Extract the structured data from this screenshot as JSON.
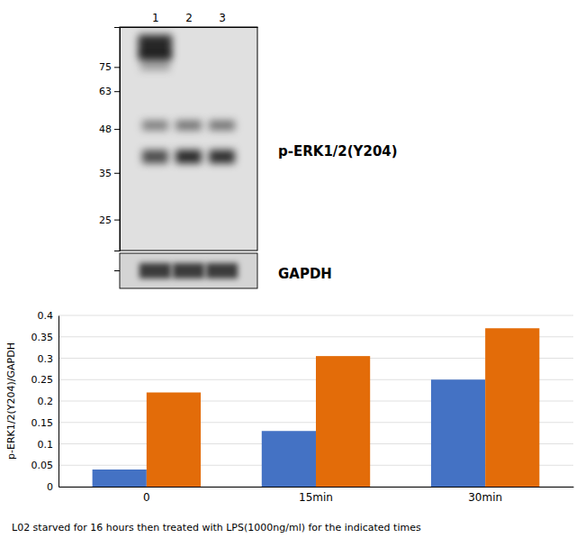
{
  "chart_data": [
    {
      "type": "blot",
      "categories": [
        "1",
        "2",
        "3"
      ],
      "log": "y",
      "ylim": [
        20,
        100
      ],
      "yticks": [
        75,
        63,
        48,
        35,
        25
      ],
      "series": [
        {
          "name": "p-ERK1/2(Y204)",
          "cells": [
            [
              0.72,
              null,
              null
            ],
            [
              0.25,
              null,
              null
            ],
            [
              0.38,
              0.42,
              0.42
            ],
            [
              0.58,
              0.72,
              0.7
            ]
          ]
        },
        {
          "name": "GAPDH",
          "cells": [
            [
              0.6,
              0.6,
              0.6
            ]
          ]
        }
      ]
    },
    {
      "type": "bar",
      "categories": [
        "0",
        "15min",
        "30min"
      ],
      "series": [
        {
          "color": "#4472C4",
          "values": [
            0.04,
            0.13,
            0.25
          ]
        },
        {
          "color": "#E36C09",
          "values": [
            0.22,
            0.305,
            0.37
          ]
        }
      ],
      "ylabel": "p-ERK1/2(Y204)/GAPDH",
      "ylim": [
        0,
        0.4
      ],
      "yticks": [
        0,
        0.05,
        0.1,
        0.15,
        0.2,
        0.25,
        0.3,
        0.35,
        0.4
      ],
      "grid": true,
      "annotations": [
        "L02 starved for 16 hours then treated with LPS(1000ng/ml) for the indicated times"
      ]
    }
  ]
}
